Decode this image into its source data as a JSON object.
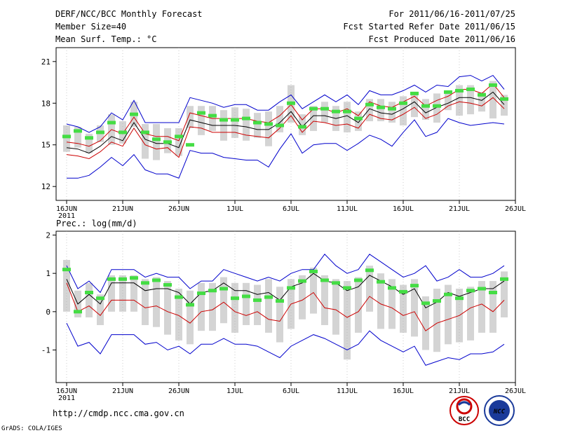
{
  "header": {
    "title": "DERF/NCC/BCC Monthly Forecast",
    "member_size": "Member Size=40",
    "period": "For 2011/06/16-2011/07/25",
    "started": "Fcst Started Refer Date 2011/06/15",
    "produced": "Fcst Produced Date 2011/06/16"
  },
  "footer": {
    "url": "http://cmdp.ncc.cma.gov.cn",
    "credit": "GrADS: COLA/IGES",
    "logo_left_text": "BCC",
    "logo_right_text": "NCC"
  },
  "colors": {
    "envelope": "#0000cc",
    "percentile": "#cc0000",
    "mean": "#000000",
    "box": "#d4d4d4",
    "median": "#44dd44"
  },
  "x_ticks": [
    {
      "label": "16JUN",
      "day": 0,
      "sub": "2011"
    },
    {
      "label": "21JUN",
      "day": 5
    },
    {
      "label": "26JUN",
      "day": 10
    },
    {
      "label": "1JUL",
      "day": 15
    },
    {
      "label": "6JUL",
      "day": 20
    },
    {
      "label": "11JUL",
      "day": 25
    },
    {
      "label": "16JUL",
      "day": 30
    },
    {
      "label": "21JUL",
      "day": 35
    },
    {
      "label": "26JUL",
      "day": 40
    }
  ],
  "chart_data": [
    {
      "type": "line",
      "title": "Mean Surf. Temp.: °C",
      "ylim": [
        11,
        22
      ],
      "yticks": [
        12,
        15,
        18,
        21
      ],
      "xlim": [
        0,
        40
      ],
      "x": [
        0,
        1,
        2,
        3,
        4,
        5,
        6,
        7,
        8,
        9,
        10,
        11,
        12,
        13,
        14,
        15,
        16,
        17,
        18,
        19,
        20,
        21,
        22,
        23,
        24,
        25,
        26,
        27,
        28,
        29,
        30,
        31,
        32,
        33,
        34,
        35,
        36,
        37,
        38,
        39
      ],
      "series": [
        {
          "name": "max",
          "values": [
            16.5,
            16.3,
            15.9,
            16.3,
            17.3,
            16.8,
            18.2,
            16.6,
            16.6,
            16.6,
            16.6,
            18.4,
            18.2,
            18.0,
            17.7,
            17.9,
            17.9,
            17.5,
            17.5,
            18.1,
            18.6,
            17.6,
            18.1,
            18.6,
            18.1,
            18.6,
            17.9,
            18.9,
            18.6,
            18.6,
            18.9,
            19.3,
            18.8,
            19.3,
            19.2,
            19.9,
            20.0,
            19.6,
            20.0,
            19.0
          ]
        },
        {
          "name": "p90",
          "values": [
            15.2,
            15.1,
            14.9,
            15.3,
            16.1,
            15.8,
            17.0,
            15.8,
            15.6,
            15.6,
            15.3,
            17.3,
            17.1,
            16.9,
            16.9,
            16.9,
            16.9,
            16.7,
            16.6,
            17.1,
            17.9,
            16.8,
            17.6,
            17.6,
            17.3,
            17.6,
            17.1,
            18.1,
            17.8,
            17.7,
            18.1,
            18.5,
            17.8,
            18.2,
            18.5,
            19.0,
            19.0,
            18.7,
            19.4,
            18.4
          ]
        },
        {
          "name": "mean",
          "values": [
            14.8,
            14.7,
            14.4,
            14.9,
            15.6,
            15.3,
            16.6,
            15.4,
            15.1,
            15.1,
            14.8,
            16.8,
            16.6,
            16.4,
            16.4,
            16.4,
            16.3,
            16.1,
            16.1,
            16.6,
            17.4,
            16.3,
            17.1,
            17.1,
            16.9,
            17.1,
            16.6,
            17.6,
            17.3,
            17.2,
            17.6,
            18.1,
            17.3,
            17.7,
            18.0,
            18.4,
            18.4,
            18.2,
            18.8,
            17.9
          ]
        },
        {
          "name": "p10",
          "values": [
            14.3,
            14.2,
            14.0,
            14.5,
            15.2,
            14.9,
            16.2,
            15.0,
            14.7,
            14.8,
            14.1,
            16.3,
            16.2,
            15.9,
            15.9,
            15.9,
            15.7,
            15.6,
            15.5,
            16.2,
            17.1,
            15.9,
            16.7,
            16.6,
            16.4,
            16.5,
            16.2,
            17.2,
            16.9,
            16.8,
            17.2,
            17.7,
            16.9,
            17.2,
            17.8,
            18.1,
            18.0,
            17.8,
            18.4,
            17.6
          ]
        },
        {
          "name": "min",
          "values": [
            12.6,
            12.6,
            12.8,
            13.4,
            14.1,
            13.5,
            14.3,
            13.2,
            12.9,
            12.9,
            12.6,
            14.6,
            14.4,
            14.4,
            14.1,
            14.0,
            13.9,
            13.9,
            13.4,
            14.7,
            15.8,
            14.4,
            15.0,
            15.1,
            15.1,
            14.6,
            15.1,
            15.7,
            15.4,
            14.9,
            15.9,
            16.8,
            15.6,
            15.9,
            16.9,
            16.6,
            16.4,
            16.5,
            16.6,
            16.5
          ]
        },
        {
          "name": "box_top",
          "values": [
            16.4,
            16.3,
            15.8,
            16.4,
            17.2,
            16.7,
            18.1,
            16.5,
            16.5,
            16.2,
            16.2,
            17.8,
            17.8,
            17.8,
            17.5,
            17.7,
            17.6,
            17.3,
            17.4,
            17.8,
            19.3,
            17.2,
            17.8,
            18.1,
            17.8,
            18.1,
            17.4,
            18.3,
            18.3,
            18.1,
            18.5,
            18.8,
            18.3,
            18.7,
            18.8,
            19.3,
            19.3,
            18.8,
            19.6,
            18.6
          ]
        },
        {
          "name": "box_bottom",
          "values": [
            14.5,
            14.8,
            14.4,
            15.2,
            15.0,
            15.1,
            16.3,
            14.0,
            13.9,
            14.4,
            14.2,
            16.2,
            15.7,
            16.0,
            15.3,
            15.5,
            15.3,
            15.5,
            14.9,
            15.9,
            16.6,
            15.7,
            16.0,
            16.6,
            16.0,
            15.9,
            16.0,
            16.7,
            16.7,
            16.6,
            16.4,
            17.0,
            16.8,
            16.6,
            17.5,
            17.1,
            17.2,
            17.4,
            16.9,
            17.1
          ]
        },
        {
          "name": "median",
          "values": [
            15.6,
            16.0,
            15.5,
            15.9,
            16.6,
            15.9,
            17.2,
            15.9,
            15.4,
            15.2,
            15.6,
            15.0,
            17.3,
            17.1,
            16.8,
            16.8,
            16.9,
            16.6,
            16.5,
            16.4,
            18.0,
            16.3,
            17.6,
            17.6,
            17.4,
            17.4,
            16.9,
            17.9,
            17.7,
            17.6,
            18.0,
            18.7,
            17.8,
            17.8,
            18.8,
            18.9,
            19.0,
            18.6,
            19.3,
            18.3
          ]
        }
      ]
    },
    {
      "type": "line",
      "title": "Prec.: log(mm/d)",
      "ylim": [
        -1.85,
        2.1
      ],
      "yticks": [
        -1,
        0,
        1,
        2
      ],
      "xlim": [
        0,
        40
      ],
      "x": [
        0,
        1,
        2,
        3,
        4,
        5,
        6,
        7,
        8,
        9,
        10,
        11,
        12,
        13,
        14,
        15,
        16,
        17,
        18,
        19,
        20,
        21,
        22,
        23,
        24,
        25,
        26,
        27,
        28,
        29,
        30,
        31,
        32,
        33,
        34,
        35,
        36,
        37,
        38,
        39
      ],
      "series": [
        {
          "name": "max",
          "values": [
            1.2,
            0.6,
            0.8,
            0.5,
            1.1,
            1.1,
            1.1,
            0.9,
            1.0,
            0.9,
            0.9,
            0.6,
            0.8,
            0.8,
            1.1,
            1.0,
            0.9,
            0.8,
            0.9,
            0.8,
            1.0,
            1.1,
            1.1,
            1.5,
            1.2,
            1.0,
            1.1,
            1.5,
            1.3,
            1.1,
            0.9,
            1.0,
            1.2,
            0.8,
            0.9,
            1.1,
            0.9,
            0.9,
            1.0,
            1.2
          ]
        },
        {
          "name": "mean",
          "values": [
            0.85,
            0.2,
            0.45,
            0.2,
            0.75,
            0.75,
            0.75,
            0.55,
            0.6,
            0.6,
            0.5,
            0.2,
            0.5,
            0.55,
            0.75,
            0.55,
            0.55,
            0.45,
            0.5,
            0.3,
            0.65,
            0.75,
            1.0,
            0.8,
            0.75,
            0.55,
            0.65,
            0.95,
            0.8,
            0.65,
            0.45,
            0.6,
            0.1,
            0.25,
            0.5,
            0.4,
            0.5,
            0.6,
            0.6,
            0.8
          ]
        },
        {
          "name": "p10",
          "values": [
            0.75,
            0.0,
            0.15,
            -0.1,
            0.3,
            0.3,
            0.3,
            0.1,
            0.15,
            0.0,
            -0.1,
            -0.3,
            0.0,
            0.05,
            0.25,
            0.0,
            -0.1,
            0.0,
            -0.2,
            -0.25,
            0.2,
            0.3,
            0.5,
            0.1,
            0.05,
            -0.15,
            0.0,
            0.4,
            0.2,
            0.1,
            -0.1,
            0.0,
            -0.5,
            -0.3,
            -0.2,
            -0.1,
            0.1,
            0.2,
            0.0,
            0.3
          ]
        },
        {
          "name": "min",
          "values": [
            -0.3,
            -0.9,
            -0.8,
            -1.1,
            -0.6,
            -0.6,
            -0.6,
            -0.85,
            -0.8,
            -1.0,
            -0.9,
            -1.1,
            -0.85,
            -0.85,
            -0.7,
            -0.85,
            -0.85,
            -0.9,
            -1.05,
            -1.2,
            -0.9,
            -0.75,
            -0.6,
            -0.7,
            -0.85,
            -1.0,
            -0.85,
            -0.5,
            -0.75,
            -0.9,
            -1.05,
            -0.9,
            -1.4,
            -1.3,
            -1.2,
            -1.25,
            -1.1,
            -1.1,
            -1.05,
            -0.85
          ]
        },
        {
          "name": "box_top",
          "values": [
            1.35,
            0.55,
            0.75,
            0.45,
            0.95,
            0.95,
            0.95,
            0.85,
            0.9,
            0.8,
            0.6,
            0.55,
            0.75,
            0.75,
            0.9,
            0.75,
            0.75,
            0.7,
            0.85,
            0.65,
            0.85,
            0.95,
            1.15,
            0.95,
            0.85,
            0.8,
            0.9,
            1.2,
            1.0,
            0.85,
            0.7,
            0.85,
            0.4,
            0.6,
            0.7,
            0.6,
            0.65,
            0.8,
            0.8,
            1.05
          ]
        },
        {
          "name": "box_bottom",
          "values": [
            0.0,
            -0.15,
            -0.15,
            -0.35,
            0.0,
            0.0,
            0.0,
            -0.35,
            -0.4,
            -0.6,
            -0.75,
            -0.85,
            -0.5,
            -0.5,
            -0.3,
            -0.55,
            -0.35,
            -0.35,
            -0.55,
            -0.8,
            -0.45,
            -0.2,
            -0.05,
            -0.35,
            -0.6,
            -1.25,
            -0.55,
            0.0,
            -0.45,
            -0.45,
            -0.55,
            -0.65,
            -1.0,
            -1.05,
            -0.85,
            -0.8,
            -0.75,
            -0.55,
            -0.55,
            -0.15
          ]
        },
        {
          "name": "median",
          "values": [
            1.1,
            0.0,
            0.5,
            0.35,
            0.85,
            0.85,
            0.88,
            0.75,
            0.82,
            0.7,
            0.38,
            0.18,
            0.48,
            0.55,
            0.6,
            0.35,
            0.4,
            0.3,
            0.38,
            0.28,
            0.62,
            0.8,
            1.05,
            0.82,
            0.75,
            0.62,
            0.82,
            1.08,
            0.78,
            0.62,
            0.52,
            0.68,
            0.22,
            0.28,
            0.45,
            0.35,
            0.55,
            0.6,
            0.5,
            0.85
          ]
        }
      ]
    }
  ]
}
